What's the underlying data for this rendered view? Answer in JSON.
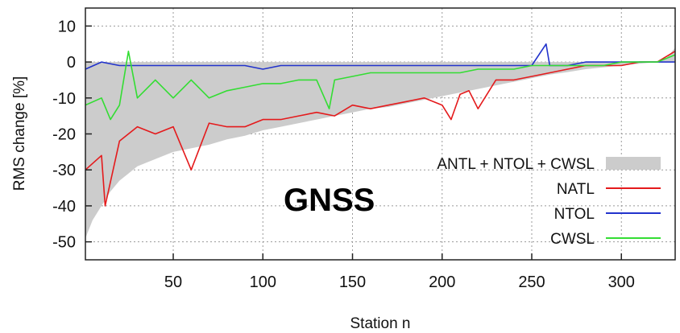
{
  "chart_data": {
    "type": "line",
    "title": "",
    "xlabel": "Station n",
    "ylabel": "RMS change [%]",
    "xlim": [
      1,
      330
    ],
    "ylim": [
      -55,
      15
    ],
    "xticks": [
      50,
      100,
      150,
      200,
      250,
      300
    ],
    "yticks": [
      10,
      0,
      -10,
      -20,
      -30,
      -40,
      -50
    ],
    "grid": true,
    "legend_position": "bottom-right",
    "annotation": "GNSS",
    "series": [
      {
        "name": "ANTL + NTOL + CWSL",
        "style": "filled-area",
        "color": "#cccccc",
        "points": [
          [
            1,
            -49
          ],
          [
            5,
            -44
          ],
          [
            10,
            -40
          ],
          [
            15,
            -36
          ],
          [
            20,
            -33
          ],
          [
            25,
            -31
          ],
          [
            30,
            -29
          ],
          [
            40,
            -27
          ],
          [
            50,
            -25
          ],
          [
            60,
            -24
          ],
          [
            70,
            -23
          ],
          [
            80,
            -21.5
          ],
          [
            90,
            -20.5
          ],
          [
            100,
            -19
          ],
          [
            110,
            -18
          ],
          [
            120,
            -17
          ],
          [
            130,
            -16
          ],
          [
            140,
            -15
          ],
          [
            150,
            -14
          ],
          [
            160,
            -13
          ],
          [
            170,
            -12.5
          ],
          [
            180,
            -11.5
          ],
          [
            190,
            -10.5
          ],
          [
            200,
            -9.5
          ],
          [
            210,
            -8.5
          ],
          [
            220,
            -7.5
          ],
          [
            230,
            -6.5
          ],
          [
            240,
            -5.5
          ],
          [
            250,
            -4.5
          ],
          [
            260,
            -3.5
          ],
          [
            270,
            -2.8
          ],
          [
            280,
            -2
          ],
          [
            290,
            -1.5
          ],
          [
            300,
            -1
          ],
          [
            310,
            -0.5
          ],
          [
            320,
            0
          ],
          [
            325,
            1
          ],
          [
            330,
            4
          ]
        ]
      },
      {
        "name": "NATL",
        "color": "#e41a1c",
        "points": [
          [
            1,
            -30
          ],
          [
            10,
            -26
          ],
          [
            12,
            -40
          ],
          [
            20,
            -22
          ],
          [
            30,
            -18
          ],
          [
            40,
            -20
          ],
          [
            50,
            -18
          ],
          [
            60,
            -30
          ],
          [
            70,
            -17
          ],
          [
            80,
            -18
          ],
          [
            90,
            -18
          ],
          [
            100,
            -16
          ],
          [
            110,
            -16
          ],
          [
            120,
            -15
          ],
          [
            130,
            -14
          ],
          [
            140,
            -15
          ],
          [
            150,
            -12
          ],
          [
            160,
            -13
          ],
          [
            170,
            -12
          ],
          [
            180,
            -11
          ],
          [
            190,
            -10
          ],
          [
            200,
            -12
          ],
          [
            205,
            -16
          ],
          [
            210,
            -9
          ],
          [
            215,
            -8
          ],
          [
            220,
            -13
          ],
          [
            230,
            -5
          ],
          [
            240,
            -5
          ],
          [
            250,
            -4
          ],
          [
            260,
            -3
          ],
          [
            270,
            -2
          ],
          [
            280,
            -1
          ],
          [
            290,
            -1
          ],
          [
            300,
            -1
          ],
          [
            310,
            0
          ],
          [
            320,
            0
          ],
          [
            330,
            3
          ]
        ]
      },
      {
        "name": "NTOL",
        "color": "#2233cc",
        "points": [
          [
            1,
            -2
          ],
          [
            10,
            0
          ],
          [
            20,
            -1
          ],
          [
            30,
            -1
          ],
          [
            40,
            -1
          ],
          [
            50,
            -1
          ],
          [
            60,
            -1
          ],
          [
            70,
            -1
          ],
          [
            80,
            -1
          ],
          [
            90,
            -1
          ],
          [
            100,
            -2
          ],
          [
            110,
            -1
          ],
          [
            120,
            -1
          ],
          [
            130,
            -1
          ],
          [
            140,
            -1
          ],
          [
            150,
            -1
          ],
          [
            160,
            -1
          ],
          [
            170,
            -1
          ],
          [
            180,
            -1
          ],
          [
            190,
            -1
          ],
          [
            200,
            -1
          ],
          [
            210,
            -1
          ],
          [
            220,
            -1
          ],
          [
            230,
            -1
          ],
          [
            240,
            -1
          ],
          [
            250,
            -1
          ],
          [
            258,
            5
          ],
          [
            260,
            -1
          ],
          [
            270,
            -1
          ],
          [
            280,
            0
          ],
          [
            290,
            0
          ],
          [
            300,
            0
          ],
          [
            310,
            0
          ],
          [
            320,
            0
          ],
          [
            330,
            0
          ]
        ]
      },
      {
        "name": "CWSL",
        "color": "#33dd33",
        "points": [
          [
            1,
            -12
          ],
          [
            10,
            -10
          ],
          [
            15,
            -16
          ],
          [
            20,
            -12
          ],
          [
            25,
            3
          ],
          [
            30,
            -10
          ],
          [
            40,
            -5
          ],
          [
            50,
            -10
          ],
          [
            60,
            -5
          ],
          [
            70,
            -10
          ],
          [
            80,
            -8
          ],
          [
            90,
            -7
          ],
          [
            100,
            -6
          ],
          [
            110,
            -6
          ],
          [
            120,
            -5
          ],
          [
            130,
            -5
          ],
          [
            137,
            -13
          ],
          [
            140,
            -5
          ],
          [
            150,
            -4
          ],
          [
            160,
            -3
          ],
          [
            170,
            -3
          ],
          [
            180,
            -3
          ],
          [
            190,
            -3
          ],
          [
            200,
            -3
          ],
          [
            210,
            -3
          ],
          [
            220,
            -2
          ],
          [
            230,
            -2
          ],
          [
            240,
            -2
          ],
          [
            250,
            -1
          ],
          [
            260,
            -1
          ],
          [
            270,
            -1
          ],
          [
            280,
            -1
          ],
          [
            290,
            -1
          ],
          [
            300,
            0
          ],
          [
            310,
            0
          ],
          [
            320,
            0
          ],
          [
            330,
            2
          ]
        ]
      }
    ]
  }
}
